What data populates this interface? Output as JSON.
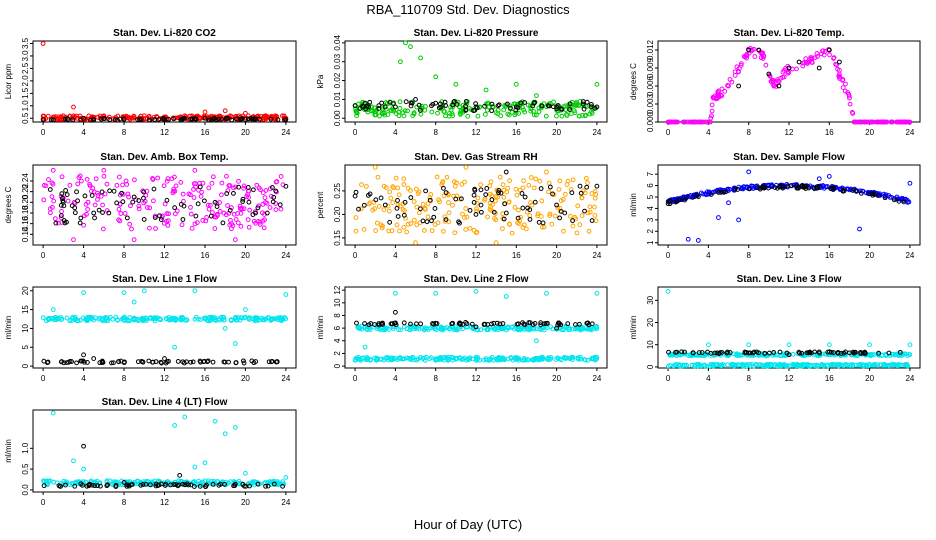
{
  "figure": {
    "title": "RBA_110709  Std. Dev. Diagnostics",
    "xlabel": "Hour of Day (UTC)"
  },
  "colors": {
    "reference": "#000000",
    "red": "#ff0000",
    "green": "#00cc00",
    "magenta": "#ff00ff",
    "orange": "#ffa500",
    "blue": "#0000ff",
    "cyan": "#00e5ee"
  },
  "chart_data": [
    {
      "type": "scatter",
      "title": "Stan. Dev. Li-820 CO2",
      "ylabel": "Licor ppm",
      "xlim": [
        -1,
        25
      ],
      "ylim": [
        0.35,
        3.6
      ],
      "xticks": [
        "0",
        "4",
        "8",
        "12",
        "16",
        "20",
        "24"
      ],
      "yticks": [
        "0.5",
        "1.0",
        "1.5",
        "2.0",
        "2.5",
        "3.0",
        "3.5"
      ],
      "series": [
        {
          "color": "red",
          "points": [
            [
              0,
              3.5
            ],
            [
              1,
              0.55
            ],
            [
              2,
              0.6
            ],
            [
              3,
              0.95
            ],
            [
              4,
              0.45
            ],
            [
              6,
              0.6
            ],
            [
              8,
              0.55
            ],
            [
              10,
              0.6
            ],
            [
              12,
              0.55
            ],
            [
              14,
              0.6
            ],
            [
              16,
              0.75
            ],
            [
              18,
              0.8
            ],
            [
              20,
              0.7
            ],
            [
              22,
              0.6
            ],
            [
              24,
              0.5
            ]
          ],
          "band": [
            0.45,
            0.6
          ]
        },
        {
          "color": "reference",
          "points": [
            [
              0,
              0.45
            ],
            [
              4,
              0.5
            ],
            [
              8,
              0.45
            ],
            [
              12,
              0.45
            ],
            [
              16,
              0.5
            ],
            [
              20,
              0.45
            ],
            [
              24,
              0.45
            ]
          ],
          "band": [
            0.42,
            0.5
          ]
        }
      ]
    },
    {
      "type": "scatter",
      "title": "Stan. Dev. Li-820 Pressure",
      "ylabel": "kPa",
      "xlim": [
        -1,
        25
      ],
      "ylim": [
        -0.002,
        0.041
      ],
      "xticks": [
        "0",
        "4",
        "8",
        "12",
        "16",
        "20",
        "24"
      ],
      "yticks": [
        "0.00",
        "0.01",
        "0.02",
        "0.03",
        "0.04"
      ],
      "series": [
        {
          "color": "green",
          "points": [
            [
              4.5,
              0.03
            ],
            [
              5,
              0.04
            ],
            [
              5.5,
              0.038
            ],
            [
              6.5,
              0.032
            ],
            [
              8,
              0.022
            ],
            [
              10,
              0.018
            ],
            [
              13,
              0.015
            ],
            [
              16,
              0.018
            ],
            [
              18,
              0.012
            ],
            [
              24,
              0.018
            ]
          ],
          "band": [
            0.001,
            0.009
          ]
        },
        {
          "color": "reference",
          "points": [
            [
              1,
              0.008
            ],
            [
              4,
              0.006
            ],
            [
              6,
              0.01
            ],
            [
              8,
              0.008
            ],
            [
              12,
              0.006
            ],
            [
              16,
              0.006
            ],
            [
              20,
              0.006
            ],
            [
              24,
              0.006
            ]
          ],
          "band": [
            0.004,
            0.009
          ]
        }
      ]
    },
    {
      "type": "scatter",
      "title": "Stan. Dev. Li-820 Temp.",
      "ylabel": "degrees C",
      "xlim": [
        -1,
        25
      ],
      "ylim": [
        0,
        0.0135
      ],
      "xticks": [
        "0",
        "4",
        "8",
        "12",
        "16",
        "20",
        "24"
      ],
      "yticks": [
        "0.000",
        "0.003",
        "0.006",
        "0.009",
        "0.012"
      ],
      "series": [
        {
          "color": "magenta",
          "shape": "hump",
          "points": [
            [
              0,
              0
            ],
            [
              4.2,
              0
            ],
            [
              4.5,
              0.004
            ],
            [
              6,
              0.006
            ],
            [
              8,
              0.012
            ],
            [
              9.5,
              0.011
            ],
            [
              10.5,
              0.006
            ],
            [
              12,
              0.009
            ],
            [
              14,
              0.01
            ],
            [
              16,
              0.012
            ],
            [
              17,
              0.008
            ],
            [
              18,
              0.004
            ],
            [
              18.5,
              0.0
            ],
            [
              24,
              0
            ]
          ]
        },
        {
          "color": "reference",
          "points": [
            [
              7,
              0.006
            ],
            [
              8,
              0.012
            ],
            [
              9,
              0.012
            ],
            [
              10,
              0.008
            ],
            [
              11,
              0.006
            ],
            [
              12,
              0.009
            ],
            [
              13,
              0.01
            ],
            [
              15,
              0.009
            ],
            [
              16,
              0.012
            ],
            [
              17,
              0.01
            ]
          ]
        }
      ]
    },
    {
      "type": "scatter",
      "title": "Stan. Dev. Amb. Box Temp.",
      "ylabel": "degrees C",
      "xlim": [
        -1,
        25
      ],
      "ylim": [
        0.12,
        0.27
      ],
      "xticks": [
        "0",
        "4",
        "8",
        "12",
        "16",
        "20",
        "24"
      ],
      "yticks": [
        "0.14",
        "0.16",
        "0.18",
        "0.20",
        "0.22",
        "0.24"
      ],
      "series": [
        {
          "color": "magenta",
          "band": [
            0.15,
            0.25
          ],
          "points": [
            [
              1,
              0.26
            ],
            [
              3,
              0.13
            ],
            [
              6,
              0.26
            ],
            [
              9,
              0.13
            ],
            [
              15,
              0.26
            ],
            [
              19,
              0.13
            ]
          ]
        },
        {
          "color": "reference",
          "band": [
            0.16,
            0.23
          ],
          "points": [
            [
              2,
              0.2
            ],
            [
              5,
              0.18
            ],
            [
              9,
              0.21
            ],
            [
              13,
              0.19
            ],
            [
              17,
              0.2
            ],
            [
              21,
              0.18
            ],
            [
              24,
              0.23
            ]
          ]
        }
      ]
    },
    {
      "type": "scatter",
      "title": "Stan. Dev. Gas Stream RH",
      "ylabel": "percent",
      "xlim": [
        -1,
        25
      ],
      "ylim": [
        0.135,
        0.305
      ],
      "xticks": [
        "0",
        "4",
        "8",
        "12",
        "16",
        "20",
        "24"
      ],
      "yticks": [
        "0.15",
        "0.20",
        "0.25"
      ],
      "series": [
        {
          "color": "orange",
          "band": [
            0.16,
            0.28
          ],
          "points": [
            [
              2,
              0.3
            ],
            [
              6,
              0.14
            ],
            [
              11,
              0.3
            ],
            [
              14,
              0.14
            ],
            [
              19,
              0.29
            ]
          ]
        },
        {
          "color": "reference",
          "band": [
            0.18,
            0.26
          ],
          "points": [
            [
              3,
              0.22
            ],
            [
              7,
              0.25
            ],
            [
              12,
              0.2
            ],
            [
              15,
              0.29
            ],
            [
              20,
              0.22
            ],
            [
              24,
              0.26
            ]
          ]
        }
      ]
    },
    {
      "type": "scatter",
      "title": "Stan. Dev. Sample Flow",
      "ylabel": "ml/min",
      "xlim": [
        -1,
        25
      ],
      "ylim": [
        0.8,
        7.8
      ],
      "xticks": [
        "0",
        "4",
        "8",
        "12",
        "16",
        "20",
        "24"
      ],
      "yticks": [
        "1",
        "2",
        "3",
        "4",
        "5",
        "6",
        "7"
      ],
      "series": [
        {
          "color": "blue",
          "shape": "arch",
          "arch": [
            4.1,
            6.0,
            4.6
          ],
          "points": [
            [
              2,
              1.3
            ],
            [
              3,
              1.2
            ],
            [
              5,
              3.2
            ],
            [
              6,
              4.5
            ],
            [
              7,
              3.0
            ],
            [
              8,
              7.2
            ],
            [
              15,
              6.6
            ],
            [
              16,
              6.8
            ],
            [
              19,
              2.2
            ],
            [
              24,
              6.2
            ]
          ]
        },
        {
          "color": "reference",
          "shape": "arch",
          "arch": [
            4.0,
            5.9,
            4.5
          ]
        }
      ]
    },
    {
      "type": "scatter",
      "title": "Stan. Dev. Line 1 Flow",
      "ylabel": "ml/min",
      "xlim": [
        -1,
        25
      ],
      "ylim": [
        -0.5,
        21
      ],
      "xticks": [
        "0",
        "4",
        "8",
        "12",
        "16",
        "20",
        "24"
      ],
      "yticks": [
        "0",
        "5",
        "10",
        "15",
        "20"
      ],
      "series": [
        {
          "color": "cyan",
          "band": [
            12,
            13
          ],
          "points": [
            [
              1,
              15
            ],
            [
              4,
              19.5
            ],
            [
              8,
              19.5
            ],
            [
              9,
              17
            ],
            [
              10,
              20
            ],
            [
              13,
              5
            ],
            [
              15,
              20
            ],
            [
              18,
              10
            ],
            [
              19,
              6
            ],
            [
              20,
              15
            ],
            [
              24,
              19
            ]
          ]
        },
        {
          "color": "reference",
          "band": [
            0.8,
            1.4
          ],
          "points": [
            [
              4,
              3
            ],
            [
              5,
              2
            ],
            [
              12,
              2
            ]
          ]
        }
      ]
    },
    {
      "type": "scatter",
      "title": "Stan. Dev. Line 2 Flow",
      "ylabel": "ml/min",
      "xlim": [
        -1,
        25
      ],
      "ylim": [
        -0.3,
        12.5
      ],
      "xticks": [
        "0",
        "4",
        "8",
        "12",
        "16",
        "20",
        "24"
      ],
      "yticks": [
        "0",
        "2",
        "4",
        "6",
        "8",
        "10",
        "12"
      ],
      "series": [
        {
          "color": "cyan",
          "band": [
            5.7,
            6.3
          ],
          "band2": [
            0.9,
            1.4
          ],
          "points": [
            [
              1,
              3
            ],
            [
              4,
              11.5
            ],
            [
              8,
              11.5
            ],
            [
              12,
              11.8
            ],
            [
              15,
              11
            ],
            [
              18,
              4
            ],
            [
              19,
              11.5
            ],
            [
              24,
              11.5
            ]
          ]
        },
        {
          "color": "reference",
          "band": [
            6.5,
            6.9
          ],
          "points": [
            [
              4,
              8.5
            ],
            [
              12,
              6.2
            ],
            [
              20,
              6.0
            ]
          ]
        }
      ]
    },
    {
      "type": "scatter",
      "title": "Stan. Dev. Line 3 Flow",
      "ylabel": "ml/min",
      "xlim": [
        -1,
        25
      ],
      "ylim": [
        -0.5,
        36
      ],
      "xticks": [
        "0",
        "4",
        "8",
        "12",
        "16",
        "20",
        "24"
      ],
      "yticks": [
        "0",
        "10",
        "20",
        "30"
      ],
      "series": [
        {
          "color": "cyan",
          "band": [
            0.3,
            1.2
          ],
          "band2": [
            5.0,
            6.0
          ],
          "points": [
            [
              0,
              34
            ],
            [
              4,
              10
            ],
            [
              8,
              10
            ],
            [
              12,
              10
            ],
            [
              16,
              10
            ],
            [
              20,
              10
            ],
            [
              24,
              10
            ]
          ]
        },
        {
          "color": "reference",
          "band": [
            6.0,
            6.8
          ],
          "points": [
            [
              12,
              5.5
            ]
          ]
        }
      ]
    },
    {
      "type": "scatter",
      "title": "Stan. Dev. Line 4 (LT) Flow",
      "ylabel": "ml/min",
      "xlim": [
        -1,
        25
      ],
      "ylim": [
        -0.05,
        1.92
      ],
      "xticks": [
        "0",
        "4",
        "8",
        "12",
        "16",
        "20",
        "24"
      ],
      "yticks": [
        "0.0",
        "0.5",
        "1.0"
      ],
      "series": [
        {
          "color": "cyan",
          "band": [
            0.12,
            0.22
          ],
          "points": [
            [
              1,
              1.85
            ],
            [
              3,
              0.7
            ],
            [
              4,
              0.5
            ],
            [
              13,
              1.55
            ],
            [
              14,
              1.75
            ],
            [
              15,
              0.55
            ],
            [
              16,
              0.65
            ],
            [
              17,
              1.65
            ],
            [
              18,
              1.35
            ],
            [
              19,
              1.5
            ],
            [
              20,
              0.4
            ],
            [
              24,
              0.3
            ]
          ]
        },
        {
          "color": "reference",
          "band": [
            0.08,
            0.15
          ],
          "points": [
            [
              4,
              1.05
            ],
            [
              13.5,
              0.35
            ],
            [
              8,
              0.18
            ]
          ]
        }
      ]
    }
  ]
}
